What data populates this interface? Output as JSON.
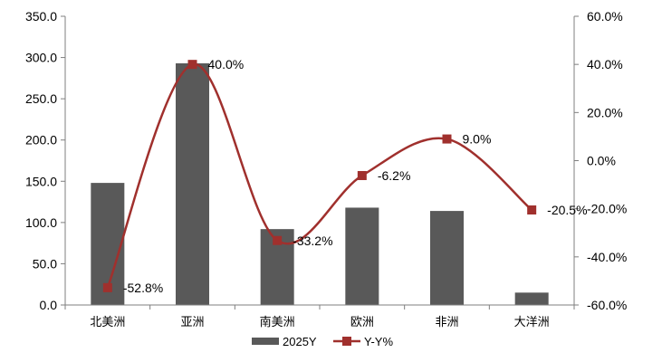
{
  "colors": {
    "bar": "#595959",
    "line": "#A0302D",
    "axis": "#7F7F7F",
    "text": "#000000"
  },
  "chart_data": {
    "type": "bar",
    "categories": [
      "北美洲",
      "亚洲",
      "南美洲",
      "欧洲",
      "非洲",
      "大洋洲"
    ],
    "series": [
      {
        "name": "2025Y",
        "type": "bar",
        "axis": "left",
        "values": [
          148,
          293,
          92,
          118,
          114,
          15
        ]
      },
      {
        "name": "Y-Y%",
        "type": "line",
        "axis": "right",
        "smooth": true,
        "marker": "square",
        "values": [
          -52.8,
          40.0,
          -33.2,
          -6.2,
          9.0,
          -20.5
        ],
        "labels": [
          "-52.8%",
          "40.0%",
          "-33.2%",
          "-6.2%",
          "9.0%",
          "-20.5%"
        ]
      }
    ],
    "y_left": {
      "ylim": [
        0,
        350
      ],
      "ticks": [
        "0.0",
        "50.0",
        "100.0",
        "150.0",
        "200.0",
        "250.0",
        "300.0",
        "350.0"
      ]
    },
    "y_right": {
      "ylim": [
        -60,
        60
      ],
      "ticks": [
        "-60.0%",
        "-40.0%",
        "-20.0%",
        "0.0%",
        "20.0%",
        "40.0%",
        "60.0%"
      ]
    },
    "title": "",
    "xlabel": "",
    "ylabel": "",
    "grid": false,
    "legend_position": "bottom"
  }
}
